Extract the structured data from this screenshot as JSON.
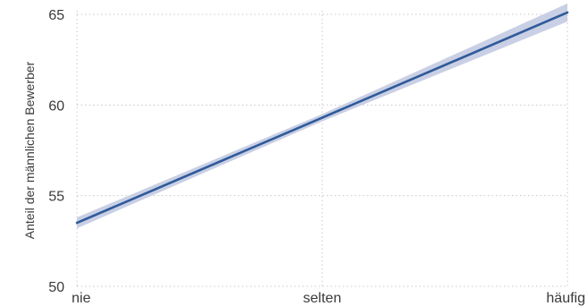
{
  "chart_data": {
    "type": "line",
    "title": "",
    "xlabel": "",
    "ylabel": "Anteil der männlichen Bewerber",
    "categories": [
      "nie",
      "selten",
      "häufig"
    ],
    "x_numeric": [
      0,
      1,
      2
    ],
    "ylim": [
      50,
      65
    ],
    "yticks": [
      50,
      55,
      60,
      65
    ],
    "grid": true,
    "legend": "none",
    "series": [
      {
        "values": [
          53.5,
          59.3,
          65.1
        ],
        "ci_lower": [
          53.2,
          59.1,
          64.6
        ],
        "ci_upper": [
          53.8,
          59.5,
          65.6
        ],
        "color": "#2e5a9a",
        "band_color": "#c9cfe4"
      }
    ]
  }
}
